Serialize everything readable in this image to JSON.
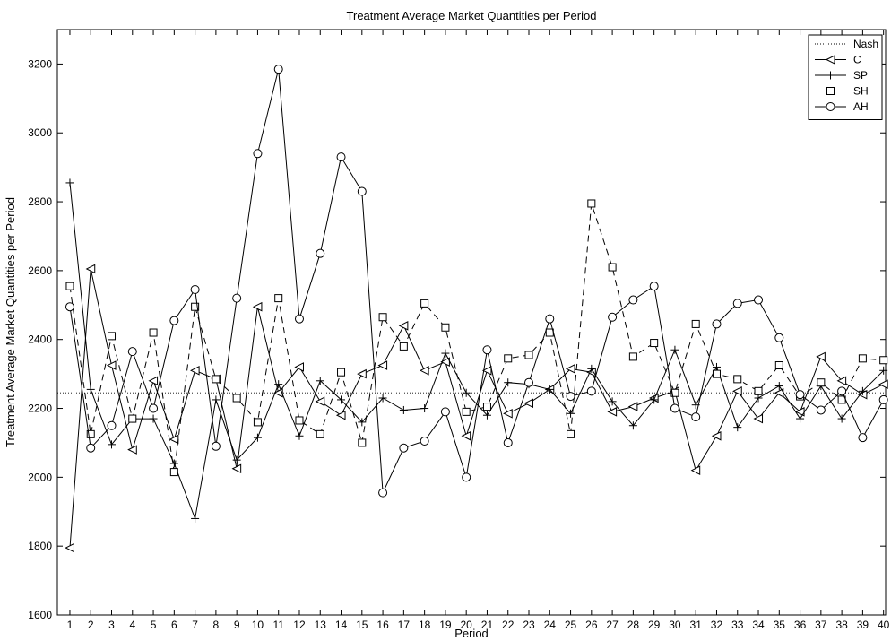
{
  "chart_data": {
    "type": "line",
    "title": "Treatment Average Market Quantities per Period",
    "xlabel": "Period",
    "ylabel": "Treatment Average Market Quantities per Period",
    "xlim": [
      0.4,
      40.1
    ],
    "ylim": [
      1600,
      3300
    ],
    "x_ticks": [
      1,
      2,
      3,
      4,
      5,
      6,
      7,
      8,
      9,
      10,
      11,
      12,
      13,
      14,
      15,
      16,
      17,
      18,
      19,
      20,
      21,
      22,
      23,
      24,
      25,
      26,
      27,
      28,
      29,
      30,
      31,
      32,
      33,
      34,
      35,
      36,
      37,
      38,
      39,
      40
    ],
    "y_ticks": [
      1600,
      1800,
      2000,
      2200,
      2400,
      2600,
      2800,
      3000,
      3200
    ],
    "grid": false,
    "legend_position": "top-right",
    "series": [
      {
        "name": "Nash",
        "marker": "none",
        "line": "dotted",
        "values": [
          2245,
          2245,
          2245,
          2245,
          2245,
          2245,
          2245,
          2245,
          2245,
          2245,
          2245,
          2245,
          2245,
          2245,
          2245,
          2245,
          2245,
          2245,
          2245,
          2245,
          2245,
          2245,
          2245,
          2245,
          2245,
          2245,
          2245,
          2245,
          2245,
          2245,
          2245,
          2245,
          2245,
          2245,
          2245,
          2245,
          2245,
          2245,
          2245,
          2245
        ]
      },
      {
        "name": "C",
        "marker": "triangle-left",
        "line": "solid",
        "values": [
          1795,
          2605,
          2325,
          2080,
          2280,
          2110,
          2310,
          2285,
          2025,
          2495,
          2245,
          2320,
          2220,
          2180,
          2300,
          2325,
          2440,
          2310,
          2335,
          2120,
          2310,
          2185,
          2215,
          2255,
          2315,
          2305,
          2190,
          2205,
          2230,
          2250,
          2020,
          2120,
          2250,
          2170,
          2245,
          2190,
          2350,
          2280,
          2240,
          2270
        ]
      },
      {
        "name": "SP",
        "marker": "plus",
        "line": "solid",
        "values": [
          2855,
          2255,
          2095,
          2170,
          2170,
          2040,
          1880,
          2225,
          2050,
          2115,
          2270,
          2120,
          2280,
          2225,
          2160,
          2230,
          2195,
          2200,
          2360,
          2245,
          2180,
          2275,
          2270,
          2255,
          2185,
          2315,
          2220,
          2150,
          2225,
          2370,
          2210,
          2320,
          2145,
          2230,
          2265,
          2170,
          2265,
          2170,
          2250,
          2310
        ]
      },
      {
        "name": "SH",
        "marker": "square",
        "line": "dashed",
        "values": [
          2555,
          2125,
          2410,
          2170,
          2420,
          2015,
          2495,
          2285,
          2230,
          2160,
          2520,
          2165,
          2125,
          2305,
          2100,
          2465,
          2380,
          2505,
          2435,
          2190,
          2205,
          2345,
          2355,
          2420,
          2125,
          2795,
          2610,
          2350,
          2390,
          2245,
          2445,
          2300,
          2285,
          2250,
          2325,
          2235,
          2275,
          2225,
          2345,
          2340
        ]
      },
      {
        "name": "AH",
        "marker": "circle",
        "line": "solid",
        "values": [
          2495,
          2085,
          2150,
          2365,
          2200,
          2455,
          2545,
          2090,
          2520,
          2940,
          3185,
          2460,
          2650,
          2930,
          2830,
          1955,
          2085,
          2105,
          2190,
          2000,
          2370,
          2100,
          2275,
          2460,
          2235,
          2250,
          2465,
          2515,
          2555,
          2200,
          2175,
          2445,
          2505,
          2515,
          2405,
          2240,
          2195,
          2250,
          2115,
          2225
        ]
      }
    ]
  }
}
